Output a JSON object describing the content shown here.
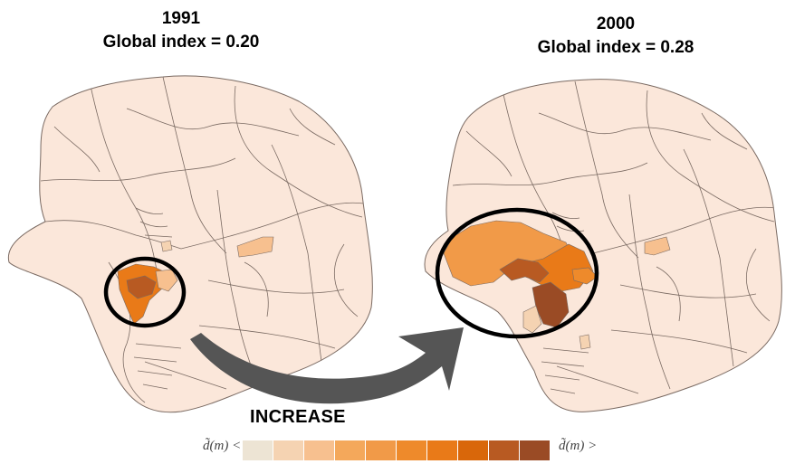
{
  "map_1991": {
    "year": "1991",
    "index_label": "Global index = 0.20"
  },
  "map_2000": {
    "year": "2000",
    "index_label": "Global index = 0.28"
  },
  "arrow_label": "INCREASE",
  "legend": {
    "left_label": "d̃(m) <",
    "right_label": "d̃(m) >",
    "colors": [
      "#ede4d4",
      "#f5d3b2",
      "#f7c08f",
      "#f4a85b",
      "#f19a48",
      "#ee8a2b",
      "#e97a18",
      "#d9670a",
      "#b85a22",
      "#9a4b25"
    ]
  },
  "colors": {
    "base_fill": "#fbe7da",
    "boundary": "#7a6a62",
    "circle": "#000000",
    "arrow": "#555555"
  }
}
